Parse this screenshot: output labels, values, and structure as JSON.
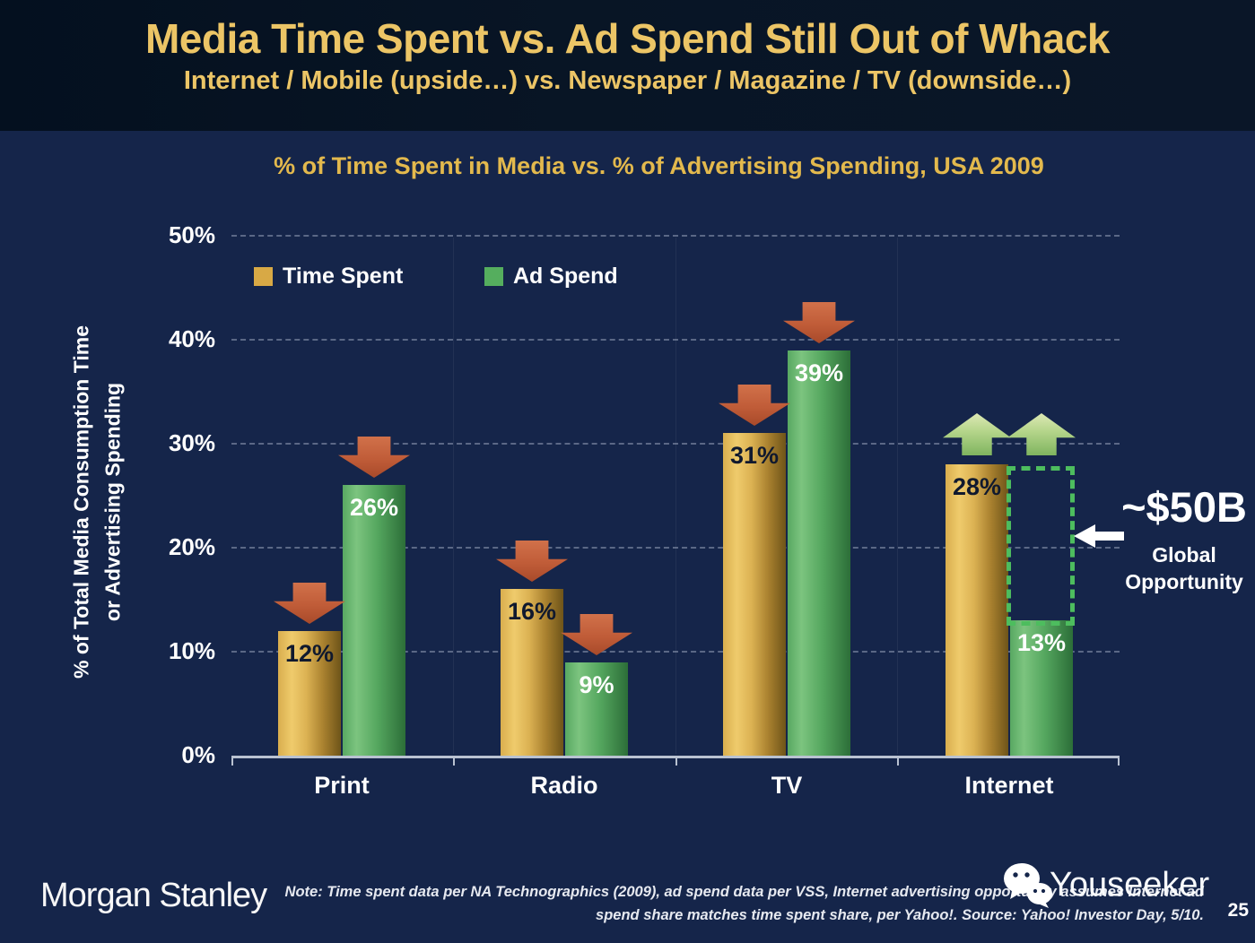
{
  "header": {
    "title": "Media Time Spent vs. Ad Spend Still Out of Whack",
    "subtitle": "Internet / Mobile (upside…) vs. Newspaper / Magazine / TV (downside…)"
  },
  "chart_data": {
    "type": "bar",
    "title": "% of Time Spent in Media vs. % of Advertising Spending, USA 2009",
    "ylabel": "% of Total Media Consumption Time or Advertising Spending",
    "ylabel_lines": [
      "% of Total Media Consumption Time",
      "or Advertising Spending"
    ],
    "categories": [
      "Print",
      "Radio",
      "TV",
      "Internet"
    ],
    "series": [
      {
        "name": "Time Spent",
        "color": "#D8A945",
        "values": [
          12,
          16,
          31,
          28
        ]
      },
      {
        "name": "Ad Spend",
        "color": "#55AE5E",
        "values": [
          26,
          9,
          39,
          13
        ]
      }
    ],
    "value_labels": [
      [
        "12%",
        "16%",
        "31%",
        "28%"
      ],
      [
        "26%",
        "9%",
        "39%",
        "13%"
      ]
    ],
    "trend_arrows": [
      "down",
      "down",
      "down",
      "up"
    ],
    "ylim": [
      0,
      50
    ],
    "yticks": [
      "0%",
      "10%",
      "20%",
      "30%",
      "40%",
      "50%"
    ],
    "grid": "horizontal-dashed",
    "legend_position": "top-left-inside",
    "annotation": {
      "headline": "~$50B",
      "label_lines": [
        "Global",
        "Opportunity"
      ],
      "gap_category": "Internet",
      "gap_from_pct": 13,
      "gap_to_pct": 28
    }
  },
  "colors": {
    "slide_bg": "#15254A",
    "header_bg": "#081523",
    "title_gold": "#ECC566",
    "chart_title_gold": "#E3B94D",
    "down_arrow": "#C05C38",
    "up_arrow": "#A8CC7E",
    "gap_dotted_green": "#4DBD5E"
  },
  "footer": {
    "brand": "Morgan Stanley",
    "note_line1": "Note: Time spent data per NA Technographics (2009), ad spend data per VSS, Internet advertising opportunity assumes Internet ad",
    "note_line2": "spend share matches time spent share, per Yahoo!. Source: Yahoo! Investor Day, 5/10.",
    "page_number": "25",
    "watermark": "Youseeker"
  }
}
